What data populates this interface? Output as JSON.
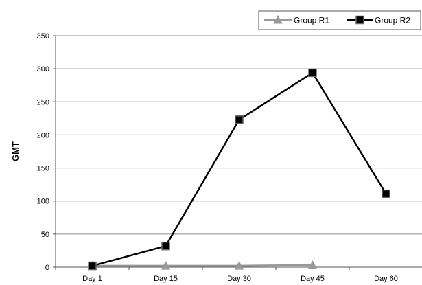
{
  "chart_data": {
    "type": "line",
    "title": "",
    "xlabel": "",
    "ylabel": "GMT",
    "categories": [
      "Day 1",
      "Day 15",
      "Day 30",
      "Day 45",
      "Day 60"
    ],
    "ylim": [
      0,
      350
    ],
    "yticks": [
      0,
      50,
      100,
      150,
      200,
      250,
      300,
      350
    ],
    "grid": true,
    "legend_position": "top-right",
    "series": [
      {
        "name": "Group R1",
        "values": [
          2,
          2,
          2,
          3,
          null
        ],
        "color": "#999999",
        "marker": "triangle"
      },
      {
        "name": "Group R2",
        "values": [
          2,
          32,
          223,
          294,
          111
        ],
        "color": "#000000",
        "marker": "square"
      }
    ]
  }
}
